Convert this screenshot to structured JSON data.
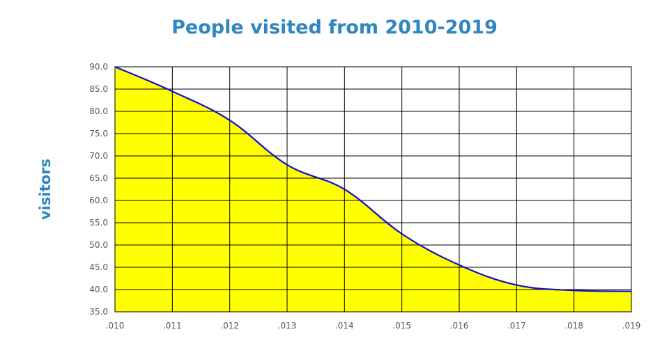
{
  "chart_data": {
    "type": "area",
    "title": "People visited from 2010-2019",
    "xlabel": "",
    "ylabel": "visitors",
    "x_tick_labels": [
      ".010",
      ".011",
      ".012",
      ".013",
      ".014",
      ".015",
      ".016",
      ".017",
      ".018",
      ".019"
    ],
    "y_tick_labels": [
      "35.0",
      "40.0",
      "45.0",
      "50.0",
      "55.0",
      "60.0",
      "65.0",
      "70.0",
      "75.0",
      "80.0",
      "85.0",
      "90.0"
    ],
    "ylim": [
      35,
      90
    ],
    "grid": true,
    "legend": "none",
    "series": [
      {
        "values": [
          90.0,
          84.5,
          78.0,
          68.0,
          62.5,
          52.5,
          45.5,
          41.0,
          39.8,
          39.6
        ],
        "line_color": "#1010c8",
        "fill_color": "#ffff00"
      }
    ]
  }
}
